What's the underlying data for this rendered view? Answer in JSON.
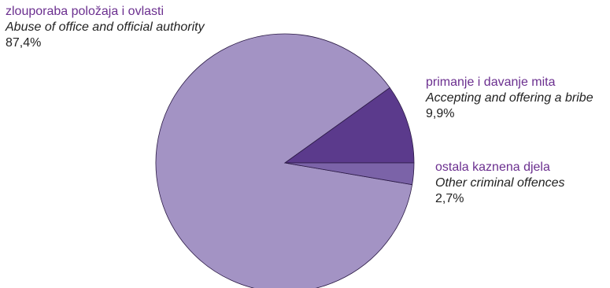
{
  "chart_data": {
    "type": "pie",
    "title": "",
    "slices": [
      {
        "label_hr": "zlouporaba položaja i ovlasti",
        "label_en": "Abuse of office and official authority",
        "value": 87.4,
        "value_label": "87,4%",
        "color": "#a393c4"
      },
      {
        "label_hr": "primanje i davanje mita",
        "label_en": "Accepting and offering a bribe",
        "value": 9.9,
        "value_label": "9,9%",
        "color": "#5b3a8c"
      },
      {
        "label_hr": "ostala kaznena djela",
        "label_en": "Other criminal offences",
        "value": 2.7,
        "value_label": "2,7%",
        "color": "#7b63a8"
      }
    ],
    "legend": "none",
    "label_color": "#6b2f8f"
  }
}
